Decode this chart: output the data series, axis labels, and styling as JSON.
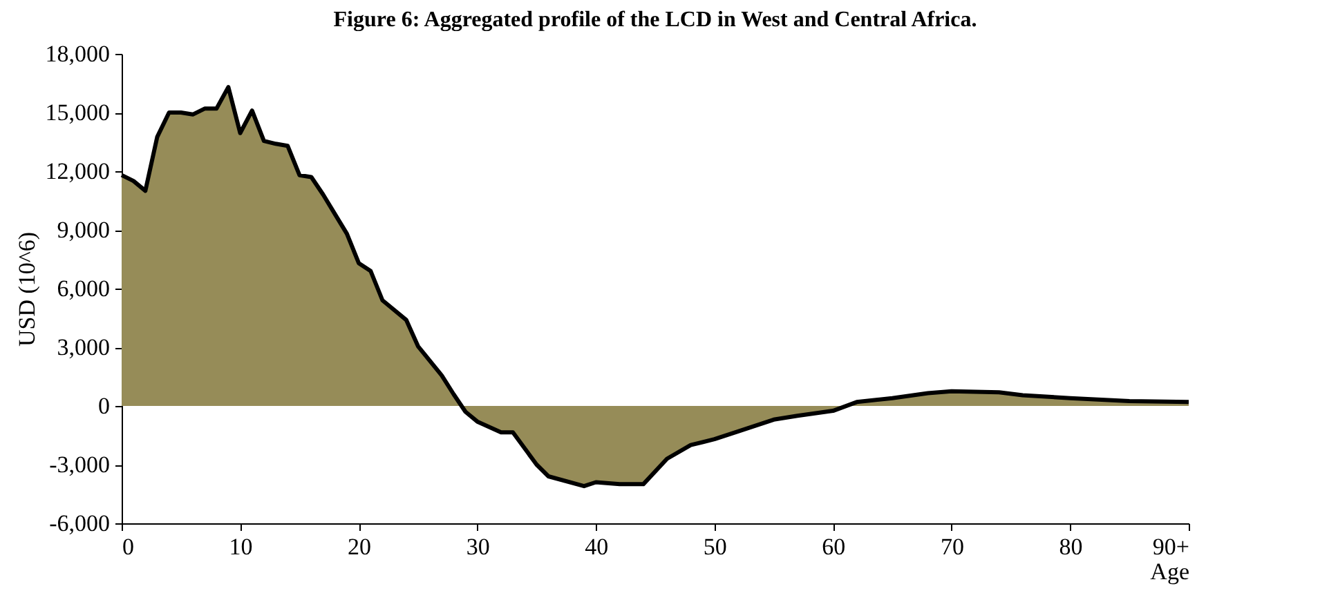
{
  "chart_data": {
    "type": "area",
    "title": "Figure 6: Aggregated profile of the LCD in West and Central Africa.",
    "xlabel": "Age",
    "ylabel": "USD (10^6)",
    "x": [
      0,
      1,
      2,
      3,
      4,
      5,
      6,
      7,
      8,
      9,
      10,
      11,
      12,
      13,
      14,
      15,
      16,
      17,
      18,
      19,
      20,
      21,
      22,
      24,
      25,
      27,
      28,
      29,
      30,
      32,
      33,
      35,
      36,
      39,
      40,
      42,
      44,
      46,
      48,
      50,
      52,
      55,
      57,
      60,
      62,
      65,
      68,
      70,
      74,
      76,
      80,
      85,
      90
    ],
    "series": [
      {
        "color": "#968c58",
        "values": [
          11800,
          11500,
          11000,
          13750,
          15000,
          15000,
          14900,
          15200,
          15200,
          16300,
          13950,
          15100,
          13550,
          13400,
          13300,
          11800,
          11700,
          10800,
          9800,
          8800,
          7300,
          6900,
          5400,
          4400,
          3050,
          1560,
          600,
          -300,
          -800,
          -1350,
          -1350,
          -3000,
          -3600,
          -4100,
          -3900,
          -4000,
          -4000,
          -2700,
          -2000,
          -1700,
          -1300,
          -700,
          -500,
          -250,
          200,
          400,
          650,
          750,
          700,
          550,
          400,
          250,
          200
        ]
      }
    ],
    "xlim": [
      0,
      90
    ],
    "xticks": [
      0,
      10,
      20,
      30,
      40,
      50,
      60,
      70,
      80,
      {
        "value": 90,
        "label": "90+"
      }
    ],
    "ylim": [
      -6000,
      18000
    ],
    "yticks": [
      {
        "value": -6000,
        "label": "-6,000"
      },
      {
        "value": -3000,
        "label": "-3,000"
      },
      0,
      {
        "value": 3000,
        "label": "3,000"
      },
      {
        "value": 6000,
        "label": "6,000"
      },
      {
        "value": 9000,
        "label": "9,000"
      },
      {
        "value": 12000,
        "label": "12,000"
      },
      {
        "value": 15000,
        "label": "15,000"
      },
      {
        "value": 18000,
        "label": "18,000"
      }
    ],
    "grid": false
  }
}
